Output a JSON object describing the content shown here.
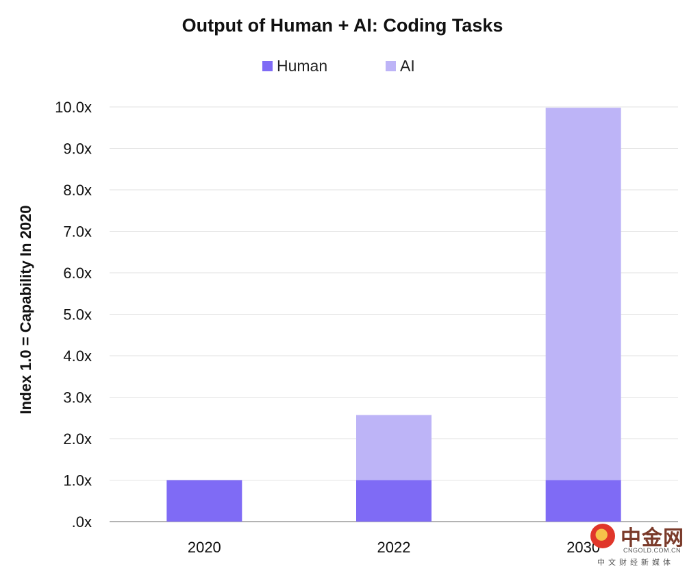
{
  "chart_data": {
    "type": "bar",
    "stacked": true,
    "title": "Output of Human + AI: Coding Tasks",
    "ylabel": "Index 1.0 = Capability In 2020",
    "xlabel": "",
    "categories": [
      "2020",
      "2022",
      "2030"
    ],
    "series": [
      {
        "name": "Human",
        "color": "#7f6bf5",
        "values": [
          1.0,
          1.0,
          1.0
        ]
      },
      {
        "name": "AI",
        "color": "#bdb4f7",
        "values": [
          0.0,
          1.57,
          8.98
        ]
      }
    ],
    "yticks": [
      ".0x",
      "1.0x",
      "2.0x",
      "3.0x",
      "4.0x",
      "5.0x",
      "6.0x",
      "7.0x",
      "8.0x",
      "9.0x",
      "10.0x"
    ],
    "ylim": [
      0,
      10
    ],
    "grid": true,
    "legend_position": "top-center"
  },
  "watermark": {
    "cn": "中金网",
    "en": "CNGOLD.COM.CN",
    "sub": "中文财经新媒体"
  }
}
